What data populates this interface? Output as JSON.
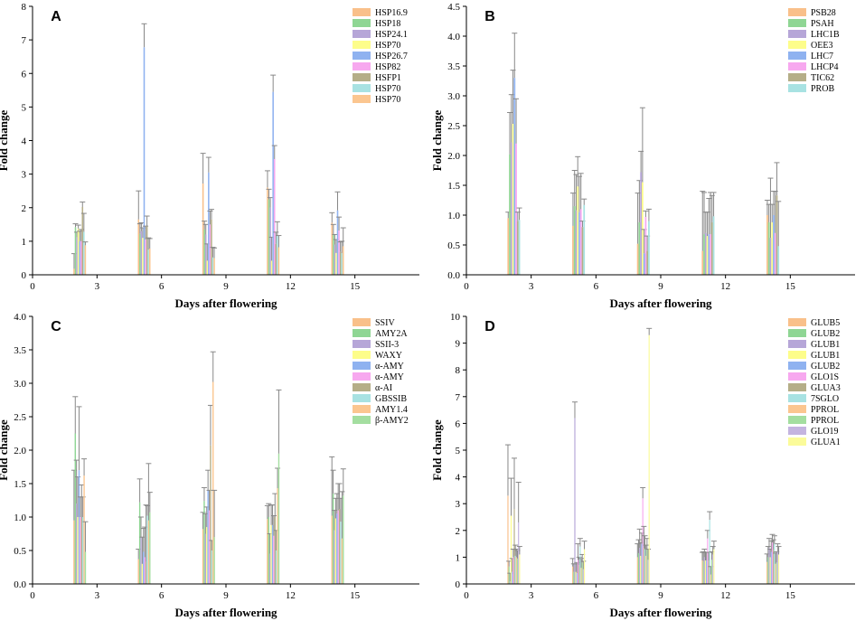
{
  "chart_data": [
    {
      "panel": "A",
      "type": "bar",
      "xlabel": "Days after flowering",
      "ylabel": "Fold change",
      "xlim": [
        0,
        18
      ],
      "xticks": [
        0,
        3,
        6,
        9,
        12,
        15
      ],
      "ylim": [
        0,
        8
      ],
      "yticks": [
        0,
        1,
        2,
        3,
        4,
        5,
        6,
        7,
        8
      ],
      "categories": [
        3,
        6,
        9,
        12,
        15
      ],
      "legend_position": "top-right",
      "series": [
        {
          "name": "HSP16.9",
          "color": "#f9c08a",
          "values": [
            0.18,
            1.65,
            2.72,
            2.6,
            1.55
          ],
          "errors": [
            0.45,
            0.85,
            0.9,
            0.5,
            0.3
          ]
        },
        {
          "name": "HSP18",
          "color": "#8fd694",
          "values": [
            1.42,
            1.22,
            1.35,
            2.25,
            1.2
          ],
          "errors": [
            0.1,
            0.3,
            0.25,
            0.3,
            0.3
          ]
        },
        {
          "name": "HSP24.1",
          "color": "#b6a6d8",
          "values": [
            1.12,
            1.3,
            1.2,
            2.0,
            0.9
          ],
          "errors": [
            0.15,
            0.25,
            0.3,
            0.3,
            0.3
          ]
        },
        {
          "name": "HSP70",
          "color": "#fdfd8a",
          "values": [
            1.38,
            1.1,
            0.42,
            0.42,
            0.65
          ],
          "errors": [
            0.1,
            0.3,
            0.5,
            0.7,
            0.4
          ]
        },
        {
          "name": "HSP26.7",
          "color": "#8fb2f0",
          "values": [
            1.0,
            6.78,
            3.05,
            5.45,
            1.92
          ],
          "errors": [
            0.3,
            0.7,
            0.45,
            0.5,
            0.55
          ]
        },
        {
          "name": "HSP82",
          "color": "#f7a8ef",
          "values": [
            1.0,
            1.05,
            1.5,
            3.45,
            1.32
          ],
          "errors": [
            0.35,
            0.4,
            0.4,
            0.4,
            0.4
          ]
        },
        {
          "name": "HSFP1",
          "color": "#b5ae88",
          "values": [
            2.02,
            1.45,
            1.65,
            0.92,
            0.68
          ],
          "errors": [
            0.15,
            0.3,
            0.3,
            0.35,
            0.3
          ]
        },
        {
          "name": "HSP70",
          "color": "#a8e2e2",
          "values": [
            1.28,
            0.75,
            0.52,
            1.18,
            0.65
          ],
          "errors": [
            0.55,
            0.35,
            0.3,
            0.4,
            0.35
          ]
        },
        {
          "name": "HSP70",
          "color": "#fbc690",
          "values": [
            0.88,
            0.78,
            0.5,
            0.82,
            0.85
          ],
          "errors": [
            0.1,
            0.3,
            0.3,
            0.35,
            0.55
          ]
        }
      ]
    },
    {
      "panel": "B",
      "type": "bar",
      "xlabel": "Days after flowering",
      "ylabel": "Fold change",
      "xlim": [
        0,
        18
      ],
      "xticks": [
        0,
        3,
        6,
        9,
        12,
        15
      ],
      "ylim": [
        0,
        4.5
      ],
      "yticks": [
        0.0,
        0.5,
        1.0,
        1.5,
        2.0,
        2.5,
        3.0,
        3.5,
        4.0,
        4.5
      ],
      "categories": [
        3,
        6,
        9,
        12,
        15
      ],
      "legend_position": "top-right",
      "series": [
        {
          "name": "PSB28",
          "color": "#f9c08a",
          "values": [
            0.95,
            0.82,
            0.52,
            0.4,
            1.0
          ],
          "errors": [
            0.1,
            0.55,
            0.85,
            1.0,
            0.25
          ]
        },
        {
          "name": "PSAH",
          "color": "#8fd694",
          "values": [
            2.02,
            1.15,
            0.88,
            0.68,
            0.88
          ],
          "errors": [
            0.7,
            0.6,
            0.7,
            0.7,
            0.3
          ]
        },
        {
          "name": "LHC1B",
          "color": "#b6a6d8",
          "values": [
            2.22,
            1.08,
            1.72,
            0.7,
            0.62
          ],
          "errors": [
            0.8,
            0.6,
            0.35,
            0.35,
            1.0
          ]
        },
        {
          "name": "OEE3",
          "color": "#fdfd8a",
          "values": [
            2.53,
            1.48,
            1.55,
            0.65,
            0.88
          ],
          "errors": [
            0.9,
            0.5,
            1.25,
            0.4,
            0.3
          ]
        },
        {
          "name": "LHC7",
          "color": "#8fb2f0",
          "values": [
            3.3,
            1.05,
            0.36,
            0.68,
            1.0
          ],
          "errors": [
            0.75,
            0.6,
            0.4,
            0.6,
            0.4
          ]
        },
        {
          "name": "LHCP4",
          "color": "#f7a8ef",
          "values": [
            2.2,
            1.1,
            0.97,
            0.68,
            0.7
          ],
          "errors": [
            0.75,
            0.6,
            0.1,
            0.7,
            0.7
          ]
        },
        {
          "name": "TIC62",
          "color": "#b5ae88",
          "values": [
            0.9,
            0.8,
            0.4,
            0.88,
            1.33
          ],
          "errors": [
            0.15,
            0.1,
            0.25,
            0.45,
            0.55
          ]
        },
        {
          "name": "PROB",
          "color": "#a8e2e2",
          "values": [
            0.92,
            1.17,
            0.9,
            0.98,
            0.48
          ],
          "errors": [
            0.2,
            0.1,
            0.2,
            0.4,
            0.75
          ]
        }
      ]
    },
    {
      "panel": "C",
      "type": "bar",
      "xlabel": "Days after flowering",
      "ylabel": "Fold change",
      "xlim": [
        0,
        18
      ],
      "xticks": [
        0,
        3,
        6,
        9,
        12,
        15
      ],
      "ylim": [
        0,
        4
      ],
      "yticks": [
        0.0,
        0.5,
        1.0,
        1.5,
        2.0,
        2.5,
        3.0,
        3.5,
        4.0
      ],
      "categories": [
        3,
        6,
        9,
        12,
        15
      ],
      "legend_position": "top-right",
      "series": [
        {
          "name": "SSIV",
          "color": "#f9c08a",
          "values": [
            0.95,
            0.37,
            0.82,
            0.97,
            1.02
          ],
          "errors": [
            0.75,
            0.15,
            0.25,
            0.2,
            0.88
          ]
        },
        {
          "name": "AMY2A",
          "color": "#8fd694",
          "values": [
            2.25,
            1.22,
            1.24,
            1.0,
            1.35
          ],
          "errors": [
            0.55,
            0.35,
            0.2,
            0.2,
            0.35
          ]
        },
        {
          "name": "SSII-3",
          "color": "#b6a6d8",
          "values": [
            1.2,
            0.7,
            0.75,
            0.45,
            0.8
          ],
          "errors": [
            0.65,
            0.3,
            0.3,
            0.3,
            0.3
          ]
        },
        {
          "name": "WAXY",
          "color": "#fdfd8a",
          "values": [
            1.0,
            0.3,
            0.85,
            0.88,
            0.98
          ],
          "errors": [
            0.6,
            0.4,
            0.3,
            0.3,
            0.3
          ]
        },
        {
          "name": "α-AMY",
          "color": "#8fb2f0",
          "values": [
            1.7,
            0.48,
            1.4,
            0.88,
            1.05
          ],
          "errors": [
            0.95,
            0.35,
            0.3,
            0.3,
            0.3
          ]
        },
        {
          "name": "α-AMY",
          "color": "#f7a8ef",
          "values": [
            1.0,
            0.4,
            1.1,
            0.72,
            1.1
          ],
          "errors": [
            0.3,
            0.45,
            0.3,
            0.3,
            0.4
          ]
        },
        {
          "name": "α-AI",
          "color": "#b5ae88",
          "values": [
            0.98,
            0.33,
            2.07,
            1.0,
            1.12
          ],
          "errors": [
            0.5,
            0.85,
            0.6,
            0.35,
            0.38
          ]
        },
        {
          "name": "GBSSIB",
          "color": "#a8e2e2",
          "values": [
            1.0,
            1.02,
            0.5,
            0.5,
            0.93
          ],
          "errors": [
            0.3,
            0.15,
            0.15,
            0.3,
            0.35
          ]
        },
        {
          "name": "AMY1.4",
          "color": "#fbc690",
          "values": [
            1.62,
            0.95,
            3.02,
            1.43,
            0.68
          ],
          "errors": [
            0.25,
            0.85,
            0.45,
            0.3,
            0.7
          ]
        },
        {
          "name": "β-AMY2",
          "color": "#a4dea0",
          "values": [
            0.48,
            1.07,
            0.7,
            1.95,
            1.32
          ],
          "errors": [
            0.45,
            0.3,
            0.7,
            0.95,
            0.4
          ]
        }
      ]
    },
    {
      "panel": "D",
      "type": "bar",
      "xlabel": "Days after flowering",
      "ylabel": "Fold change",
      "xlim": [
        0,
        18
      ],
      "xticks": [
        0,
        3,
        6,
        9,
        12,
        15
      ],
      "ylim": [
        0,
        10
      ],
      "yticks": [
        0,
        1,
        2,
        3,
        4,
        5,
        6,
        7,
        8,
        9,
        10
      ],
      "categories": [
        3,
        6,
        9,
        12,
        15
      ],
      "legend_position": "top-right",
      "series": [
        {
          "name": "GLUB5",
          "color": "#f9c08a",
          "values": [
            3.3,
            0.65,
            1.0,
            0.88,
            0.82
          ],
          "errors": [
            1.9,
            0.3,
            0.5,
            0.3,
            0.3
          ]
        },
        {
          "name": "GLUB2",
          "color": "#8fd694",
          "values": [
            0.65,
            0.45,
            1.15,
            0.85,
            1.0
          ],
          "errors": [
            0.2,
            0.3,
            0.5,
            0.35,
            0.4
          ]
        },
        {
          "name": "GLUB1",
          "color": "#b6a6d8",
          "values": [
            0.1,
            6.2,
            1.35,
            1.0,
            1.35
          ],
          "errors": [
            0.3,
            0.6,
            0.7,
            0.3,
            0.35
          ]
        },
        {
          "name": "GLUB1",
          "color": "#fdfd8a",
          "values": [
            2.55,
            0.45,
            1.05,
            0.88,
            1.0
          ],
          "errors": [
            1.4,
            0.3,
            0.5,
            0.3,
            0.3
          ]
        },
        {
          "name": "GLUB2",
          "color": "#8fb2f0",
          "values": [
            0.45,
            0.4,
            1.5,
            0.88,
            1.2
          ],
          "errors": [
            0.5,
            0.4,
            0.4,
            0.3,
            0.4
          ]
        },
        {
          "name": "GLO1S",
          "color": "#f7a8ef",
          "values": [
            1.0,
            0.9,
            3.2,
            1.7,
            1.55
          ],
          "errors": [
            0.3,
            0.6,
            0.4,
            0.3,
            0.3
          ]
        },
        {
          "name": "GLUA3",
          "color": "#b5ae88",
          "values": [
            2.8,
            0.7,
            1.35,
            0.88,
            1.3
          ],
          "errors": [
            1.9,
            0.3,
            0.8,
            0.3,
            0.35
          ]
        },
        {
          "name": "7SGLO",
          "color": "#a8e2e2",
          "values": [
            1.05,
            1.4,
            1.3,
            2.4,
            1.5
          ],
          "errors": [
            0.4,
            0.3,
            0.5,
            0.3,
            0.3
          ]
        },
        {
          "name": "PPROL",
          "color": "#fbc690",
          "values": [
            1.0,
            0.6,
            1.05,
            0.35,
            0.75
          ],
          "errors": [
            0.3,
            0.35,
            0.4,
            0.3,
            0.4
          ]
        },
        {
          "name": "PPROL",
          "color": "#a4dea0",
          "values": [
            0.95,
            0.8,
            1.3,
            0.9,
            0.8
          ],
          "errors": [
            0.3,
            0.3,
            0.4,
            0.3,
            0.4
          ]
        },
        {
          "name": "GLO19",
          "color": "#c4b4e0",
          "values": [
            2.3,
            0.55,
            0.9,
            1.1,
            1.2
          ],
          "errors": [
            1.5,
            0.3,
            0.4,
            0.3,
            0.3
          ]
        },
        {
          "name": "GLUA1",
          "color": "#fbfb9a",
          "values": [
            1.1,
            1.3,
            9.3,
            1.3,
            1.1
          ],
          "errors": [
            0.3,
            0.3,
            0.25,
            0.3,
            0.3
          ]
        }
      ]
    }
  ]
}
